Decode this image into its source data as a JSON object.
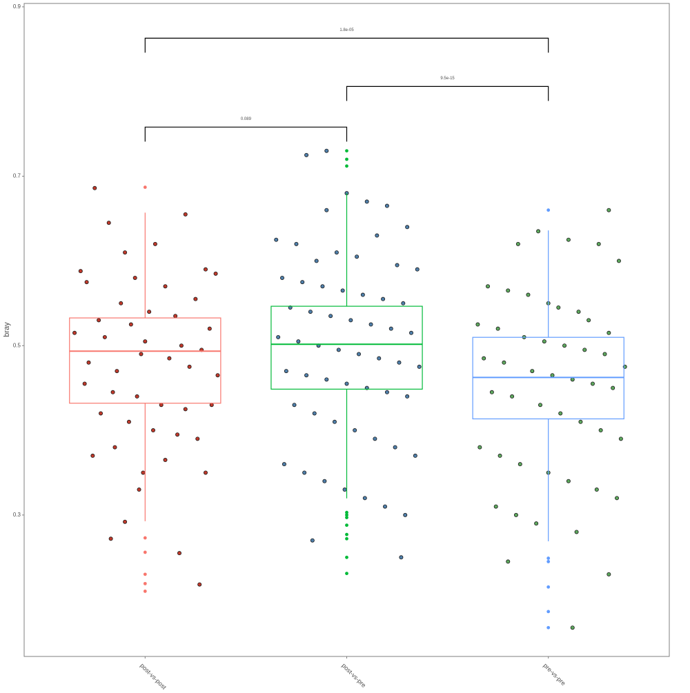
{
  "chart_data": {
    "type": "box",
    "y_label": "bray",
    "categories": [
      "post-vs-post",
      "post-vs-pre",
      "pre-vs-pre"
    ],
    "xlim": [
      0.4,
      3.6
    ],
    "ylim": [
      0.133,
      0.904
    ],
    "yticks": [
      0.3,
      0.5,
      0.7,
      0.9
    ],
    "boxes": [
      {
        "color": "#F8766D",
        "q1": 0.432,
        "median": 0.4935,
        "q3": 0.5327,
        "whisker_low": 0.2927,
        "whisker_high": 0.657,
        "outliers": [
          0.687,
          0.273,
          0.256,
          0.23,
          0.219,
          0.21
        ]
      },
      {
        "color": "#00BA38",
        "q1": 0.4486,
        "median": 0.5016,
        "q3": 0.5465,
        "whisker_low": 0.3196,
        "whisker_high": 0.68,
        "outliers": [
          0.73,
          0.72,
          0.712,
          0.303,
          0.3,
          0.297,
          0.288,
          0.277,
          0.272,
          0.25,
          0.231
        ]
      },
      {
        "color": "#619CFF",
        "q1": 0.4135,
        "median": 0.4624,
        "q3": 0.5098,
        "whisker_low": 0.269,
        "whisker_high": 0.636,
        "outliers": [
          0.66,
          0.249,
          0.245,
          0.215,
          0.186,
          0.167
        ]
      }
    ],
    "points": [
      {
        "color": "#C0392B",
        "x": [
          0.75,
          0.82,
          0.9,
          1.05,
          1.2,
          1.3,
          0.68,
          0.71,
          0.95,
          1.1,
          1.35,
          0.88,
          1.02,
          1.25,
          0.77,
          0.93,
          1.15,
          1.32,
          0.65,
          0.8,
          1.0,
          1.18,
          1.28,
          0.72,
          0.86,
          0.98,
          1.12,
          1.22,
          1.36,
          0.7,
          0.84,
          0.96,
          1.08,
          1.2,
          1.33,
          0.78,
          0.92,
          1.04,
          1.16,
          1.26,
          0.85,
          1.1,
          0.74,
          0.99,
          1.3,
          0.97,
          0.9,
          0.83,
          1.17,
          1.27
        ],
        "values": [
          0.686,
          0.645,
          0.61,
          0.62,
          0.655,
          0.59,
          0.588,
          0.575,
          0.58,
          0.57,
          0.585,
          0.55,
          0.54,
          0.555,
          0.53,
          0.525,
          0.535,
          0.52,
          0.515,
          0.51,
          0.505,
          0.5,
          0.495,
          0.48,
          0.47,
          0.49,
          0.485,
          0.475,
          0.465,
          0.455,
          0.445,
          0.44,
          0.43,
          0.425,
          0.43,
          0.42,
          0.41,
          0.4,
          0.395,
          0.39,
          0.38,
          0.365,
          0.37,
          0.35,
          0.35,
          0.33,
          0.292,
          0.272,
          0.255,
          0.218
        ]
      },
      {
        "color": "#4F7FAA",
        "x": [
          1.9,
          1.8,
          1.9,
          2.0,
          2.1,
          2.2,
          2.3,
          1.65,
          1.75,
          1.85,
          1.95,
          2.05,
          2.15,
          2.25,
          2.35,
          1.68,
          1.78,
          1.88,
          1.98,
          2.08,
          2.18,
          2.28,
          1.72,
          1.82,
          1.92,
          2.02,
          2.12,
          2.22,
          2.32,
          1.66,
          1.76,
          1.86,
          1.96,
          2.06,
          2.16,
          2.26,
          2.36,
          1.7,
          1.8,
          1.9,
          2.0,
          2.1,
          2.2,
          2.3,
          1.74,
          1.84,
          1.94,
          2.04,
          2.14,
          2.24,
          2.34,
          1.69,
          1.79,
          1.89,
          1.99,
          2.09,
          2.19,
          2.29,
          1.83,
          2.27
        ],
        "values": [
          0.73,
          0.725,
          0.66,
          0.68,
          0.67,
          0.665,
          0.64,
          0.625,
          0.62,
          0.6,
          0.61,
          0.605,
          0.63,
          0.595,
          0.59,
          0.58,
          0.575,
          0.57,
          0.565,
          0.56,
          0.555,
          0.55,
          0.545,
          0.54,
          0.535,
          0.53,
          0.525,
          0.52,
          0.515,
          0.51,
          0.505,
          0.5,
          0.495,
          0.49,
          0.485,
          0.48,
          0.475,
          0.47,
          0.465,
          0.46,
          0.455,
          0.45,
          0.445,
          0.44,
          0.43,
          0.42,
          0.41,
          0.4,
          0.39,
          0.38,
          0.37,
          0.36,
          0.35,
          0.34,
          0.33,
          0.32,
          0.31,
          0.3,
          0.27,
          0.25
        ]
      },
      {
        "color": "#5EA85E",
        "x": [
          3.3,
          2.95,
          3.1,
          2.85,
          3.25,
          3.35,
          2.7,
          2.8,
          2.9,
          3.0,
          3.05,
          3.15,
          3.2,
          2.65,
          2.75,
          3.3,
          2.88,
          2.98,
          3.08,
          3.18,
          3.28,
          2.68,
          2.78,
          3.38,
          2.92,
          3.02,
          3.12,
          3.22,
          3.32,
          2.72,
          2.82,
          2.96,
          3.06,
          3.16,
          3.26,
          3.36,
          2.66,
          2.76,
          2.86,
          3.0,
          3.1,
          3.24,
          3.34,
          2.74,
          2.84,
          2.94,
          3.14,
          2.8,
          3.3,
          3.12
        ],
        "values": [
          0.66,
          0.635,
          0.625,
          0.62,
          0.62,
          0.6,
          0.57,
          0.565,
          0.56,
          0.55,
          0.545,
          0.54,
          0.53,
          0.525,
          0.52,
          0.515,
          0.51,
          0.505,
          0.5,
          0.495,
          0.49,
          0.485,
          0.48,
          0.475,
          0.47,
          0.465,
          0.46,
          0.455,
          0.45,
          0.445,
          0.44,
          0.43,
          0.42,
          0.41,
          0.4,
          0.39,
          0.38,
          0.37,
          0.36,
          0.35,
          0.34,
          0.33,
          0.32,
          0.31,
          0.3,
          0.29,
          0.28,
          0.245,
          0.23,
          0.167
        ]
      }
    ],
    "comparisons": [
      {
        "label": "1.8e-05",
        "groups": [
          "post-vs-post",
          "pre-vs-pre"
        ],
        "y": 0.863
      },
      {
        "label": "9.5e-15",
        "groups": [
          "post-vs-pre",
          "pre-vs-pre"
        ],
        "y": 0.806
      },
      {
        "label": "0.089",
        "groups": [
          "post-vs-post",
          "post-vs-pre"
        ],
        "y": 0.758
      }
    ]
  }
}
